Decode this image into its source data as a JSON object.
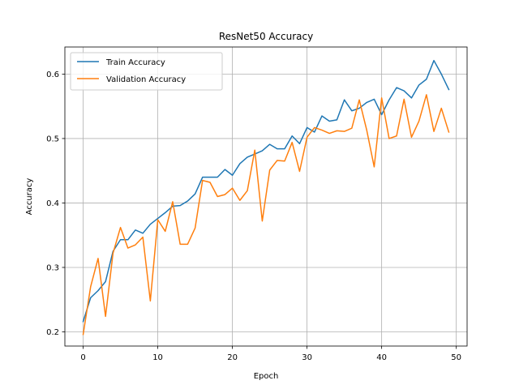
{
  "chart_data": {
    "type": "line",
    "title": "ResNet50 Accuracy",
    "xlabel": "Epoch",
    "ylabel": "Accuracy",
    "xlim": [
      -2.45,
      51.45
    ],
    "ylim": [
      0.178,
      0.642
    ],
    "xticks": [
      0,
      10,
      20,
      30,
      40,
      50
    ],
    "yticks": [
      0.2,
      0.3,
      0.4,
      0.5,
      0.6
    ],
    "xtick_labels": [
      "0",
      "10",
      "20",
      "30",
      "40",
      "50"
    ],
    "ytick_labels": [
      "0.2",
      "0.3",
      "0.4",
      "0.5",
      "0.6"
    ],
    "grid": true,
    "legend_position": "upper-left",
    "x": [
      0,
      1,
      2,
      3,
      4,
      5,
      6,
      7,
      8,
      9,
      10,
      11,
      12,
      13,
      14,
      15,
      16,
      17,
      18,
      19,
      20,
      21,
      22,
      23,
      24,
      25,
      26,
      27,
      28,
      29,
      30,
      31,
      32,
      33,
      34,
      35,
      36,
      37,
      38,
      39,
      40,
      41,
      42,
      43,
      44,
      45,
      46,
      47,
      48,
      49
    ],
    "series": [
      {
        "name": "Train Accuracy",
        "color": "#1f77b4",
        "values": [
          0.216,
          0.253,
          0.264,
          0.278,
          0.325,
          0.343,
          0.343,
          0.358,
          0.353,
          0.367,
          0.376,
          0.385,
          0.395,
          0.396,
          0.403,
          0.414,
          0.44,
          0.44,
          0.44,
          0.452,
          0.443,
          0.461,
          0.471,
          0.476,
          0.481,
          0.491,
          0.484,
          0.484,
          0.504,
          0.492,
          0.517,
          0.51,
          0.535,
          0.527,
          0.529,
          0.56,
          0.543,
          0.547,
          0.556,
          0.561,
          0.537,
          0.56,
          0.579,
          0.574,
          0.563,
          0.583,
          0.592,
          0.621,
          0.6,
          0.576
        ]
      },
      {
        "name": "Validation Accuracy",
        "color": "#ff7f0e",
        "values": [
          0.196,
          0.27,
          0.314,
          0.224,
          0.322,
          0.362,
          0.33,
          0.335,
          0.347,
          0.248,
          0.374,
          0.356,
          0.402,
          0.336,
          0.336,
          0.361,
          0.435,
          0.432,
          0.41,
          0.413,
          0.423,
          0.404,
          0.419,
          0.482,
          0.372,
          0.451,
          0.466,
          0.465,
          0.494,
          0.449,
          0.502,
          0.517,
          0.513,
          0.508,
          0.512,
          0.511,
          0.516,
          0.56,
          0.513,
          0.456,
          0.563,
          0.5,
          0.504,
          0.561,
          0.502,
          0.527,
          0.568,
          0.511,
          0.547,
          0.51
        ]
      }
    ]
  }
}
